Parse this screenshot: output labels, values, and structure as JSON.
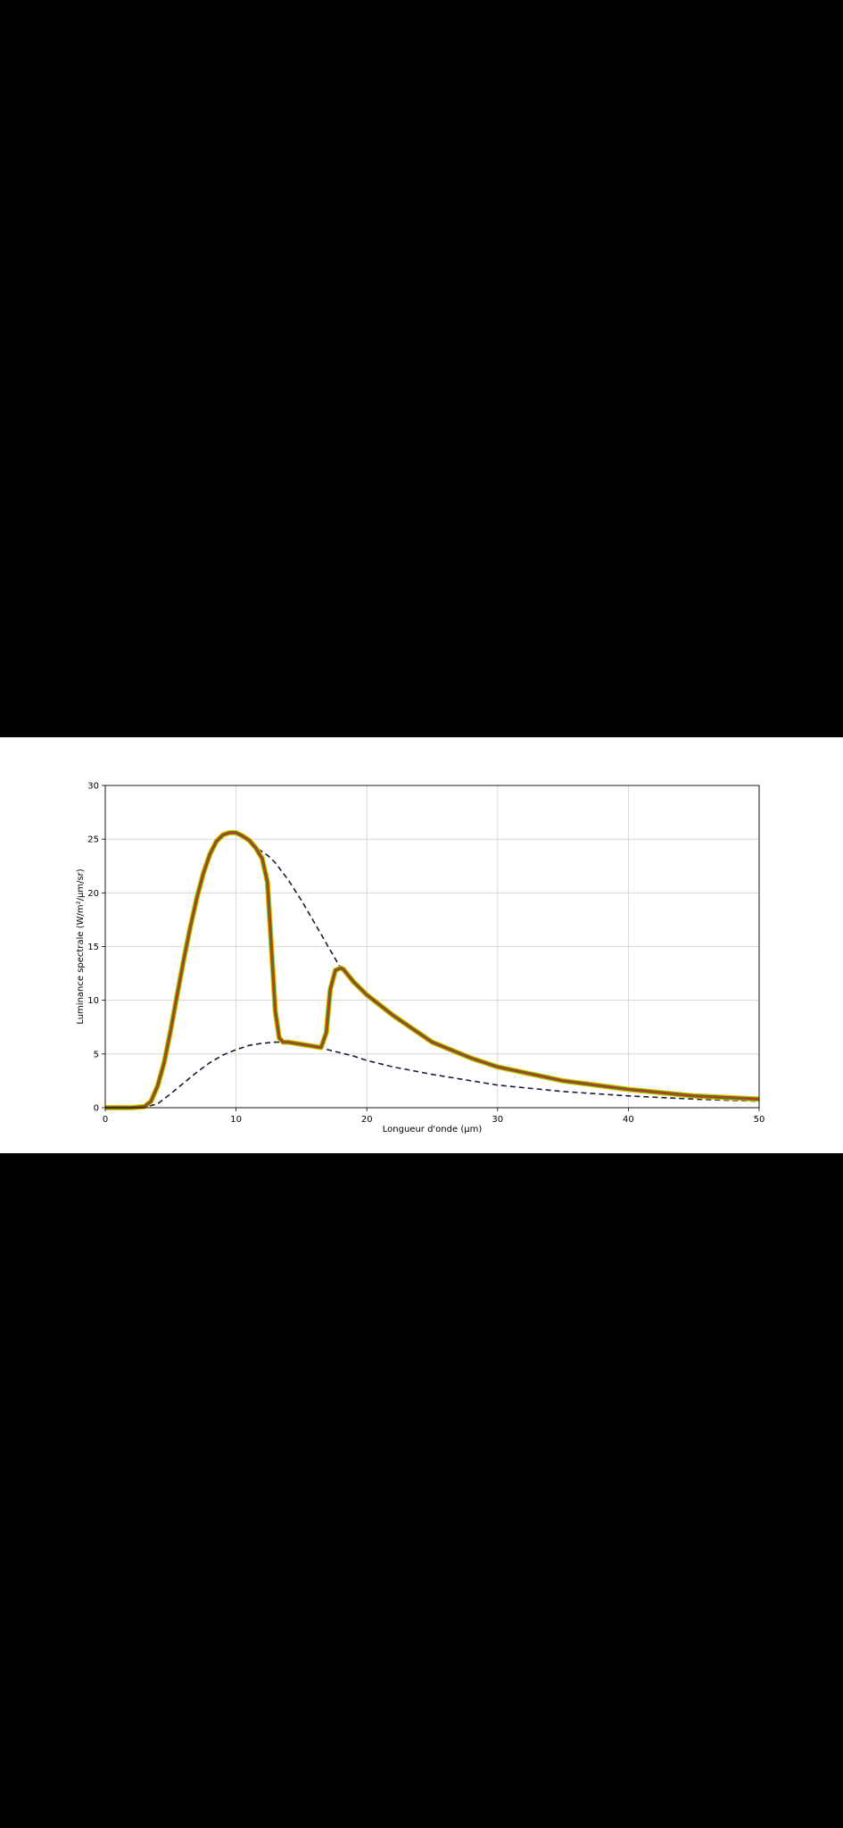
{
  "chart_data": {
    "type": "line",
    "title": "",
    "xlabel": "Longueur d'onde (µm)",
    "ylabel": "Luminance spectrale (W/m²/µm/sr)",
    "xlim": [
      0,
      50
    ],
    "ylim": [
      0,
      30
    ],
    "xticks": [
      0,
      10,
      20,
      30,
      40,
      50
    ],
    "yticks": [
      0,
      5,
      10,
      15,
      20,
      25,
      30
    ],
    "grid": true,
    "colors": {
      "outer": "#e8c000",
      "middle": "#2a8a1a",
      "main": "#c0392b",
      "dashed": "#1a1a3a"
    },
    "series": [
      {
        "style": "dashed",
        "x": [
          0,
          2,
          3,
          4,
          5,
          6,
          7,
          8,
          9,
          10,
          11,
          12,
          13,
          14,
          15,
          16,
          17,
          18,
          19,
          20,
          22,
          25,
          28,
          30,
          35,
          40,
          45,
          50
        ],
        "y": [
          0,
          0,
          0.05,
          0.35,
          1.3,
          2.3,
          3.3,
          4.2,
          4.9,
          5.4,
          5.8,
          6.0,
          6.1,
          6.1,
          5.9,
          5.7,
          5.4,
          5.1,
          4.8,
          4.4,
          3.8,
          3.1,
          2.5,
          2.1,
          1.5,
          1.1,
          0.8,
          0.6
        ]
      },
      {
        "style": "dashed",
        "x": [
          11.7,
          12.5,
          13,
          14,
          15,
          16,
          17,
          18
        ],
        "y": [
          24.1,
          23.4,
          22.8,
          21.2,
          19.3,
          17.2,
          15.1,
          13.0
        ]
      },
      {
        "style": "solid",
        "x": [
          0,
          2,
          3,
          3.5,
          4,
          4.5,
          5,
          5.5,
          6,
          6.5,
          7,
          7.5,
          8,
          8.5,
          9,
          9.5,
          10,
          10.5,
          11,
          11.5,
          12,
          12.4,
          12.7,
          13,
          13.3,
          13.6,
          14,
          15,
          16,
          16.5,
          16.9,
          17.2,
          17.6,
          18,
          18.2,
          19,
          20,
          22,
          25,
          28,
          30,
          35,
          40,
          45,
          50
        ],
        "y": [
          0,
          0,
          0.1,
          0.6,
          2.0,
          4.2,
          7.2,
          10.5,
          13.8,
          16.8,
          19.5,
          21.8,
          23.6,
          24.8,
          25.4,
          25.6,
          25.6,
          25.3,
          24.9,
          24.2,
          23.2,
          21.0,
          15.0,
          9.0,
          6.5,
          6.1,
          6.1,
          5.9,
          5.7,
          5.6,
          7.0,
          11.0,
          12.8,
          13.0,
          12.9,
          11.7,
          10.5,
          8.6,
          6.1,
          4.6,
          3.8,
          2.5,
          1.7,
          1.1,
          0.8
        ]
      }
    ]
  }
}
